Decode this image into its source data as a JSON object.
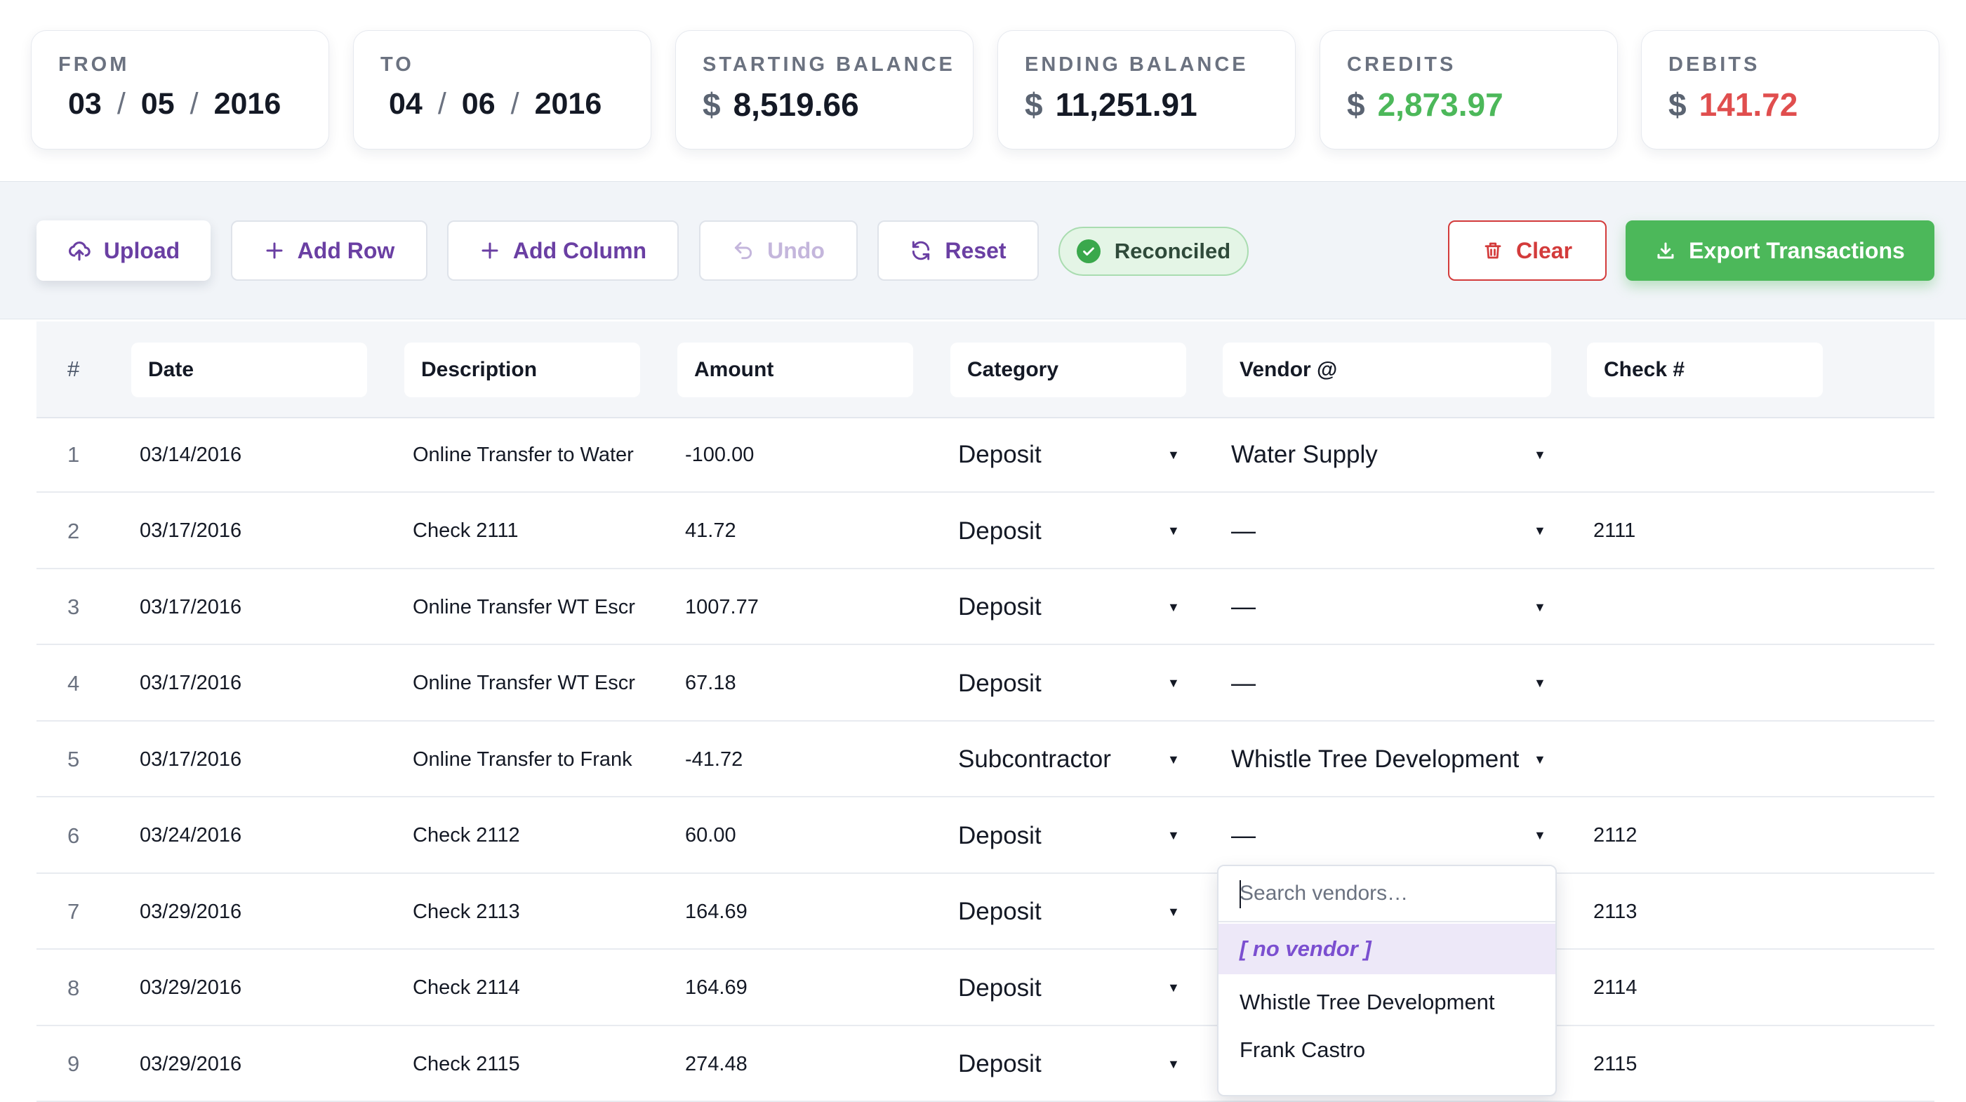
{
  "summary": {
    "from": {
      "label": "FROM",
      "month": "03",
      "day": "05",
      "year": "2016"
    },
    "to": {
      "label": "TO",
      "month": "04",
      "day": "06",
      "year": "2016"
    },
    "starting_balance": {
      "label": "STARTING BALANCE",
      "currency": "$",
      "value": "8,519.66"
    },
    "ending_balance": {
      "label": "ENDING BALANCE",
      "currency": "$",
      "value": "11,251.91"
    },
    "credits": {
      "label": "CREDITS",
      "currency": "$",
      "value": "2,873.97",
      "color": "#4cb85a"
    },
    "debits": {
      "label": "DEBITS",
      "currency": "$",
      "value": "141.72",
      "color": "#e04e4e"
    },
    "separator": "/"
  },
  "toolbar": {
    "upload": "Upload",
    "add_row": "Add Row",
    "add_column": "Add Column",
    "undo": "Undo",
    "reset": "Reset",
    "status": "Reconciled",
    "clear": "Clear",
    "export": "Export Transactions"
  },
  "table": {
    "headers": {
      "num": "#",
      "date": "Date",
      "description": "Description",
      "amount": "Amount",
      "category": "Category",
      "vendor": "Vendor @",
      "check": "Check #"
    },
    "rows": [
      {
        "num": "1",
        "date": "03/14/2016",
        "description": "Online Transfer to Water",
        "amount": "-100.00",
        "category": "Deposit",
        "vendor": "Water Supply",
        "check": ""
      },
      {
        "num": "2",
        "date": "03/17/2016",
        "description": "Check 2111",
        "amount": "41.72",
        "category": "Deposit",
        "vendor": "—",
        "check": "2111"
      },
      {
        "num": "3",
        "date": "03/17/2016",
        "description": "Online Transfer WT Escr",
        "amount": "1007.77",
        "category": "Deposit",
        "vendor": "—",
        "check": ""
      },
      {
        "num": "4",
        "date": "03/17/2016",
        "description": "Online Transfer WT Escr",
        "amount": "67.18",
        "category": "Deposit",
        "vendor": "—",
        "check": ""
      },
      {
        "num": "5",
        "date": "03/17/2016",
        "description": "Online Transfer to Frank",
        "amount": "-41.72",
        "category": "Subcontractor",
        "vendor": "Whistle Tree Development",
        "check": ""
      },
      {
        "num": "6",
        "date": "03/24/2016",
        "description": "Check 2112",
        "amount": "60.00",
        "category": "Deposit",
        "vendor": "—",
        "check": "2112"
      },
      {
        "num": "7",
        "date": "03/29/2016",
        "description": "Check 2113",
        "amount": "164.69",
        "category": "Deposit",
        "vendor": "",
        "check": "2113"
      },
      {
        "num": "8",
        "date": "03/29/2016",
        "description": "Check 2114",
        "amount": "164.69",
        "category": "Deposit",
        "vendor": "",
        "check": "2114"
      },
      {
        "num": "9",
        "date": "03/29/2016",
        "description": "Check 2115",
        "amount": "274.48",
        "category": "Deposit",
        "vendor": "",
        "check": "2115"
      }
    ],
    "dropdown_arrow": "▼"
  },
  "vendor_dropdown": {
    "search_placeholder": "Search vendors…",
    "options": [
      "[ no vendor ]",
      "Whistle Tree Development",
      "Frank Castro"
    ]
  },
  "colors": {
    "accent": "#6a3fa3",
    "success": "#4cb85a",
    "danger": "#d33b3b"
  },
  "icons": {
    "upload": "cloud-upload-icon",
    "add_row": "plus-icon",
    "add_column": "plus-icon",
    "undo": "undo-icon",
    "reset": "refresh-icon",
    "status": "check-circle-icon",
    "clear": "trash-icon",
    "export": "download-icon",
    "dropdown": "caret-down-icon"
  }
}
